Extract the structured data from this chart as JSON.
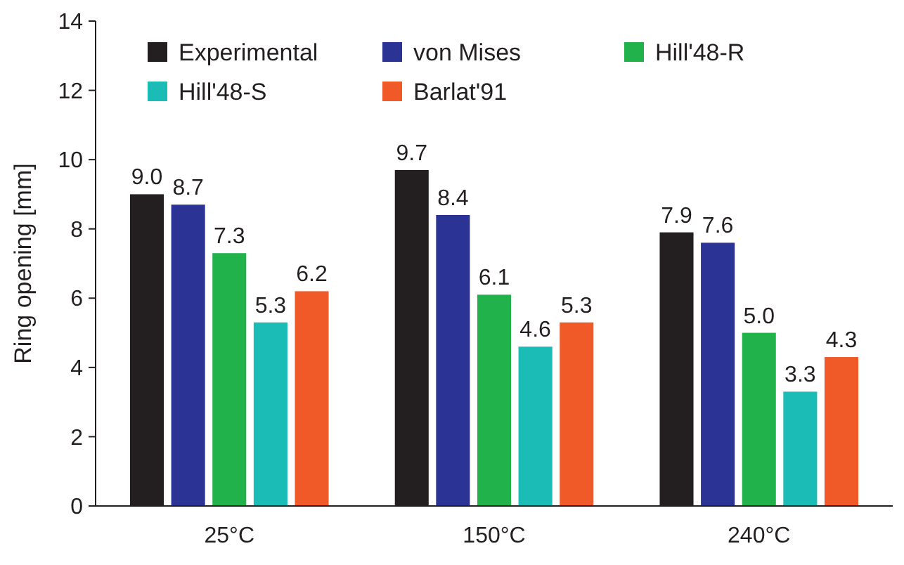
{
  "chart_data": {
    "type": "bar",
    "ylabel": "Ring opening [mm]",
    "categories": [
      "25°C",
      "150°C",
      "240°C"
    ],
    "series": [
      {
        "name": "Experimental",
        "color": "#231f20",
        "values": [
          9.0,
          9.7,
          7.9
        ],
        "value_labels": [
          "9.0",
          "9.7",
          "7.9"
        ]
      },
      {
        "name": "von Mises",
        "color": "#2b3495",
        "values": [
          8.7,
          8.4,
          7.6
        ],
        "value_labels": [
          "8.7",
          "8.4",
          "7.6"
        ]
      },
      {
        "name": "Hill'48-R",
        "color": "#22b24c",
        "values": [
          7.3,
          6.1,
          5.0
        ],
        "value_labels": [
          "7.3",
          "6.1",
          "5.0"
        ]
      },
      {
        "name": "Hill'48-S",
        "color": "#1bbcb5",
        "values": [
          5.3,
          4.6,
          3.3
        ],
        "value_labels": [
          "5.3",
          "4.6",
          "3.3"
        ]
      },
      {
        "name": "Barlat'91",
        "color": "#f05a28",
        "values": [
          6.2,
          5.3,
          4.3
        ],
        "value_labels": [
          "6.2",
          "5.3",
          "4.3"
        ]
      }
    ],
    "ylim": [
      0,
      14
    ],
    "yticks": [
      0,
      2,
      4,
      6,
      8,
      10,
      12,
      14
    ],
    "grid": false,
    "legend": "top"
  }
}
